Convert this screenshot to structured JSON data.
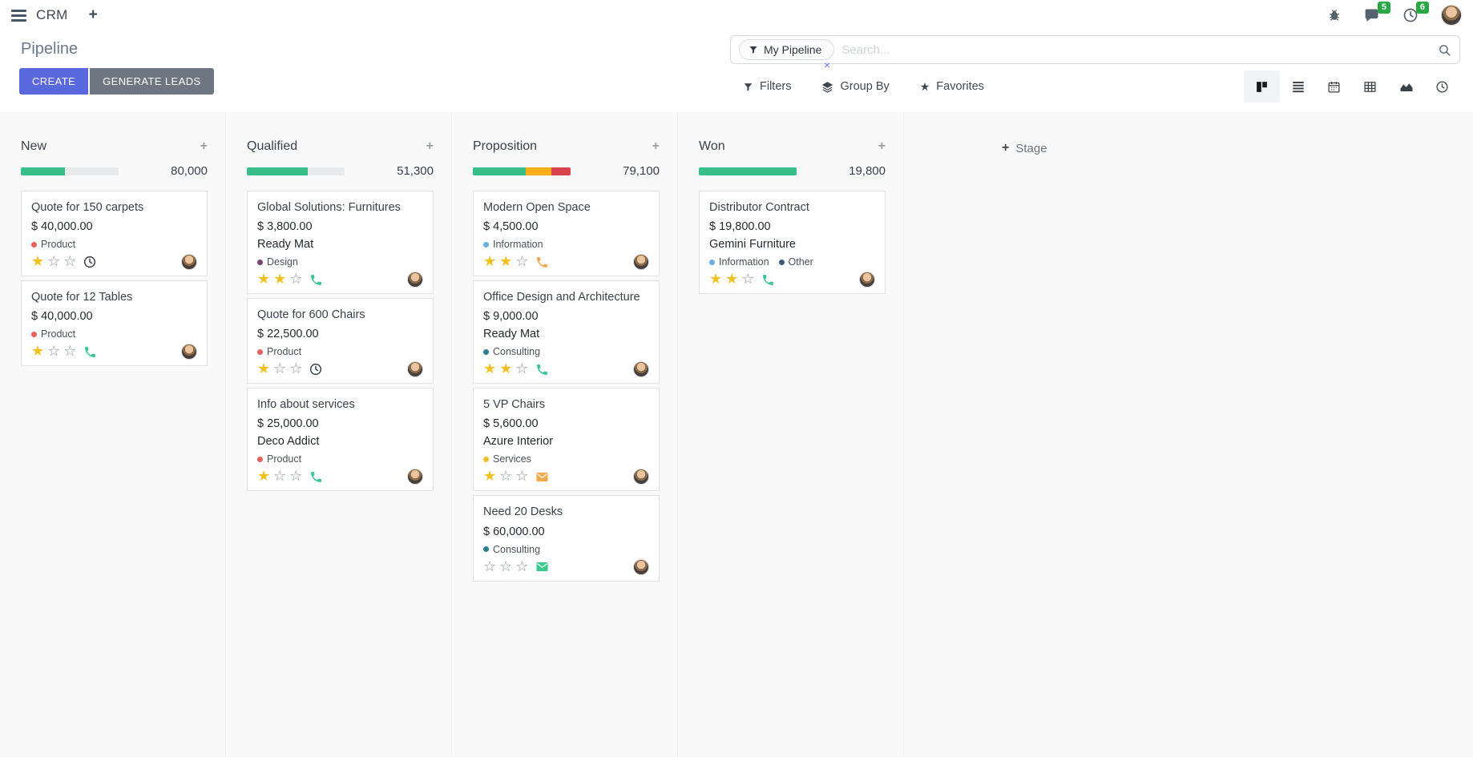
{
  "navbar": {
    "app_name": "CRM",
    "messages_badge": "5",
    "activities_badge": "6"
  },
  "control_panel": {
    "title": "Pipeline",
    "create_label": "CREATE",
    "generate_leads_label": "GENERATE LEADS",
    "search": {
      "facet_label": "My Pipeline",
      "placeholder": "Search..."
    },
    "filters_label": "Filters",
    "group_by_label": "Group By",
    "favorites_label": "Favorites"
  },
  "icons": {
    "plus": "+",
    "close": "×",
    "star_filled": "★",
    "star_empty": "☆",
    "favorites_star": "★"
  },
  "colors": {
    "progress_green": "#39c08a",
    "progress_orange": "#fbae17",
    "progress_red": "#d9434f",
    "badge_green": "#28a745",
    "create_button": "#5968dd",
    "generate_button": "#6e7681"
  },
  "board": {
    "add_stage_label": "Stage",
    "columns": [
      {
        "name": "New",
        "amount": "80,000",
        "progress": [
          {
            "color": "#39c08a",
            "pct": 45
          }
        ],
        "cards": [
          {
            "title": "Quote for 150 carpets",
            "amount": "$ 40,000.00",
            "partner": null,
            "tags": [
              {
                "label": "Product",
                "color": "#e8605d"
              }
            ],
            "stars": 1,
            "activity": {
              "type": "clock",
              "color": "#39414b"
            }
          },
          {
            "title": "Quote for 12 Tables",
            "amount": "$ 40,000.00",
            "partner": null,
            "tags": [
              {
                "label": "Product",
                "color": "#e8605d"
              }
            ],
            "stars": 1,
            "activity": {
              "type": "phone",
              "color": "#38c593"
            }
          }
        ]
      },
      {
        "name": "Qualified",
        "amount": "51,300",
        "progress": [
          {
            "color": "#39c08a",
            "pct": 62
          }
        ],
        "cards": [
          {
            "title": "Global Solutions: Furnitures",
            "amount": "$ 3,800.00",
            "partner": "Ready Mat",
            "tags": [
              {
                "label": "Design",
                "color": "#7a466d"
              }
            ],
            "stars": 2,
            "activity": {
              "type": "phone",
              "color": "#38c593"
            }
          },
          {
            "title": "Quote for 600 Chairs",
            "amount": "$ 22,500.00",
            "partner": null,
            "tags": [
              {
                "label": "Product",
                "color": "#e8605d"
              }
            ],
            "stars": 1,
            "activity": {
              "type": "clock",
              "color": "#39414b"
            }
          },
          {
            "title": "Info about services",
            "amount": "$ 25,000.00",
            "partner": "Deco Addict",
            "tags": [
              {
                "label": "Product",
                "color": "#e8605d"
              }
            ],
            "stars": 1,
            "activity": {
              "type": "phone",
              "color": "#38c593"
            }
          }
        ]
      },
      {
        "name": "Proposition",
        "amount": "79,100",
        "progress": [
          {
            "color": "#39c08a",
            "pct": 54
          },
          {
            "color": "#fbae17",
            "pct": 26
          },
          {
            "color": "#d9434f",
            "pct": 20
          }
        ],
        "cards": [
          {
            "title": "Modern Open Space",
            "amount": "$ 4,500.00",
            "partner": null,
            "tags": [
              {
                "label": "Information",
                "color": "#68b0e3"
              }
            ],
            "stars": 2,
            "activity": {
              "type": "phone",
              "color": "#f2a64f"
            }
          },
          {
            "title": "Office Design and Architecture",
            "amount": "$ 9,000.00",
            "partner": "Ready Mat",
            "tags": [
              {
                "label": "Consulting",
                "color": "#2a7e8d"
              }
            ],
            "stars": 2,
            "activity": {
              "type": "phone",
              "color": "#38c593"
            }
          },
          {
            "title": "5 VP Chairs",
            "amount": "$ 5,600.00",
            "partner": "Azure Interior",
            "tags": [
              {
                "label": "Services",
                "color": "#efbd2c"
              }
            ],
            "stars": 1,
            "activity": {
              "type": "envelope",
              "color": "#f2a94f"
            }
          },
          {
            "title": "Need 20 Desks",
            "amount": "$ 60,000.00",
            "partner": null,
            "tags": [
              {
                "label": "Consulting",
                "color": "#2a7e8d"
              }
            ],
            "stars": 0,
            "activity": {
              "type": "envelope",
              "color": "#3bc98d"
            }
          }
        ]
      },
      {
        "name": "Won",
        "amount": "19,800",
        "progress": [
          {
            "color": "#39c08a",
            "pct": 100
          }
        ],
        "cards": [
          {
            "title": "Distributor Contract",
            "amount": "$ 19,800.00",
            "partner": "Gemini Furniture",
            "tags": [
              {
                "label": "Information",
                "color": "#68b0e3"
              },
              {
                "label": "Other",
                "color": "#3d5a78"
              }
            ],
            "stars": 2,
            "activity": {
              "type": "phone",
              "color": "#38c593"
            }
          }
        ]
      }
    ]
  }
}
